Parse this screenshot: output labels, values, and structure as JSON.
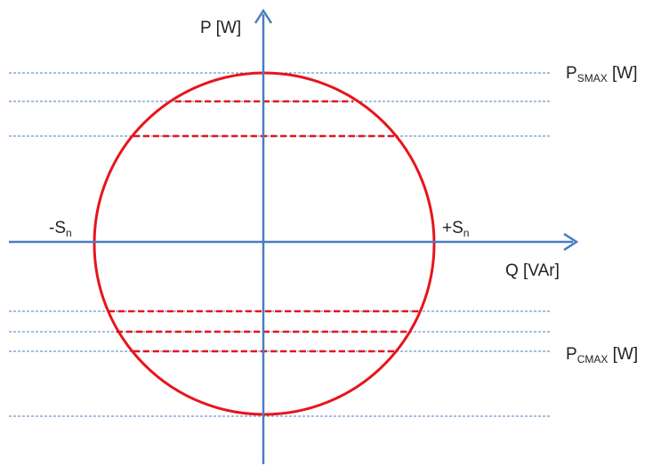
{
  "axes": {
    "p_label": "P [W]",
    "q_label": "Q [VAr]"
  },
  "labels": {
    "minus_sn": {
      "main": "-S",
      "sub": "n"
    },
    "plus_sn": {
      "main": "+S",
      "sub": "n"
    },
    "psmax": {
      "main": "P",
      "sub": "SMAX",
      "unit": " [W]"
    },
    "pcmax": {
      "main": "P",
      "sub": "CMAX",
      "unit": " [W]"
    }
  }
}
